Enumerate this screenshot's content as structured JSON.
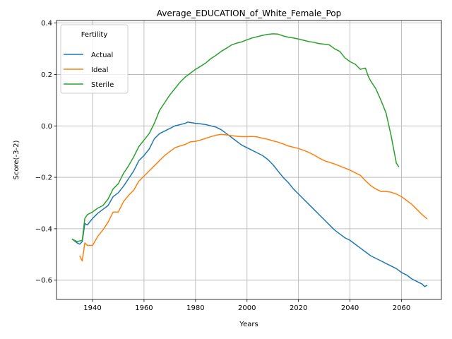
{
  "chart_data": {
    "type": "line",
    "title": "Average_EDUCATION_of_White_Female_Pop",
    "xlabel": "Years",
    "ylabel": "Score(-3-2)",
    "xlim": [
      1926,
      2075.5
    ],
    "ylim": [
      -0.675,
      0.41
    ],
    "xticks": [
      1940,
      1960,
      1980,
      2000,
      2020,
      2040,
      2060
    ],
    "xtick_labels": [
      "1940",
      "1960",
      "1980",
      "2000",
      "2020",
      "2040",
      "2060"
    ],
    "yticks": [
      -0.6,
      -0.4,
      -0.2,
      0.0,
      0.2,
      0.4
    ],
    "ytick_labels": [
      "−0.6",
      "−0.4",
      "−0.2",
      "0.0",
      "0.2",
      "0.4"
    ],
    "grid": true,
    "legend": {
      "title": "Fertility",
      "position": "top-left"
    },
    "series": [
      {
        "name": "Actual",
        "color": "#1f77b4",
        "x": [
          1932,
          1934,
          1935,
          1936,
          1937,
          1938,
          1940,
          1942,
          1944,
          1946,
          1948,
          1950,
          1952,
          1954,
          1956,
          1958,
          1960,
          1962,
          1964,
          1966,
          1968,
          1970,
          1972,
          1974,
          1976,
          1977,
          1978,
          1980,
          1982,
          1984,
          1986,
          1988,
          1990,
          1992,
          1994,
          1996,
          1998,
          2000,
          2002,
          2004,
          2006,
          2008,
          2010,
          2012,
          2014,
          2016,
          2018,
          2020,
          2022,
          2024,
          2026,
          2028,
          2030,
          2032,
          2034,
          2036,
          2038,
          2040,
          2042,
          2044,
          2046,
          2048,
          2050,
          2052,
          2054,
          2056,
          2058,
          2060,
          2062,
          2064,
          2066,
          2068,
          2069,
          2070
        ],
        "values": [
          -0.44,
          -0.455,
          -0.46,
          -0.45,
          -0.38,
          -0.385,
          -0.36,
          -0.34,
          -0.325,
          -0.31,
          -0.275,
          -0.26,
          -0.235,
          -0.205,
          -0.175,
          -0.135,
          -0.115,
          -0.09,
          -0.05,
          -0.03,
          -0.02,
          -0.01,
          0.0,
          0.005,
          0.01,
          0.015,
          0.013,
          0.01,
          0.008,
          0.005,
          0.0,
          -0.005,
          -0.015,
          -0.03,
          -0.045,
          -0.06,
          -0.075,
          -0.085,
          -0.095,
          -0.105,
          -0.115,
          -0.13,
          -0.15,
          -0.175,
          -0.2,
          -0.22,
          -0.245,
          -0.265,
          -0.285,
          -0.305,
          -0.325,
          -0.345,
          -0.365,
          -0.385,
          -0.405,
          -0.42,
          -0.435,
          -0.445,
          -0.46,
          -0.475,
          -0.49,
          -0.505,
          -0.515,
          -0.525,
          -0.535,
          -0.545,
          -0.555,
          -0.57,
          -0.58,
          -0.595,
          -0.605,
          -0.615,
          -0.625,
          -0.62
        ]
      },
      {
        "name": "Ideal",
        "color": "#ff7f0e",
        "x": [
          1935,
          1936,
          1937,
          1938,
          1940,
          1942,
          1944,
          1946,
          1948,
          1950,
          1952,
          1954,
          1956,
          1958,
          1960,
          1962,
          1964,
          1966,
          1968,
          1970,
          1972,
          1974,
          1976,
          1978,
          1980,
          1982,
          1984,
          1986,
          1988,
          1990,
          1992,
          1994,
          1996,
          1998,
          2000,
          2002,
          2004,
          2006,
          2008,
          2010,
          2012,
          2014,
          2016,
          2018,
          2020,
          2022,
          2024,
          2026,
          2028,
          2030,
          2032,
          2034,
          2036,
          2038,
          2040,
          2042,
          2044,
          2046,
          2048,
          2050,
          2052,
          2054,
          2056,
          2058,
          2060,
          2062,
          2064,
          2066,
          2068,
          2070
        ],
        "values": [
          -0.505,
          -0.525,
          -0.455,
          -0.465,
          -0.465,
          -0.43,
          -0.405,
          -0.375,
          -0.335,
          -0.335,
          -0.295,
          -0.27,
          -0.25,
          -0.215,
          -0.195,
          -0.175,
          -0.155,
          -0.135,
          -0.115,
          -0.1,
          -0.085,
          -0.078,
          -0.072,
          -0.062,
          -0.06,
          -0.055,
          -0.048,
          -0.042,
          -0.036,
          -0.033,
          -0.035,
          -0.038,
          -0.04,
          -0.042,
          -0.042,
          -0.041,
          -0.043,
          -0.048,
          -0.052,
          -0.058,
          -0.063,
          -0.07,
          -0.078,
          -0.083,
          -0.088,
          -0.095,
          -0.103,
          -0.113,
          -0.125,
          -0.135,
          -0.142,
          -0.148,
          -0.156,
          -0.164,
          -0.172,
          -0.182,
          -0.192,
          -0.213,
          -0.232,
          -0.245,
          -0.255,
          -0.255,
          -0.258,
          -0.265,
          -0.275,
          -0.29,
          -0.305,
          -0.325,
          -0.345,
          -0.362
        ]
      },
      {
        "name": "Sterile",
        "color": "#2ca02c",
        "x": [
          1932,
          1934,
          1936,
          1937,
          1938,
          1940,
          1942,
          1944,
          1946,
          1948,
          1950,
          1952,
          1954,
          1956,
          1958,
          1960,
          1962,
          1964,
          1966,
          1968,
          1970,
          1972,
          1974,
          1976,
          1978,
          1980,
          1982,
          1984,
          1986,
          1988,
          1990,
          1992,
          1994,
          1996,
          1998,
          2000,
          2002,
          2004,
          2006,
          2008,
          2010,
          2012,
          2014,
          2016,
          2018,
          2020,
          2022,
          2024,
          2026,
          2028,
          2030,
          2032,
          2034,
          2036,
          2038,
          2040,
          2042,
          2044,
          2046,
          2047,
          2048,
          2050,
          2052,
          2054,
          2056,
          2058,
          2059
        ],
        "values": [
          -0.44,
          -0.45,
          -0.445,
          -0.36,
          -0.345,
          -0.335,
          -0.32,
          -0.31,
          -0.285,
          -0.245,
          -0.225,
          -0.185,
          -0.155,
          -0.12,
          -0.08,
          -0.055,
          -0.03,
          0.01,
          0.06,
          0.09,
          0.12,
          0.145,
          0.17,
          0.19,
          0.205,
          0.22,
          0.232,
          0.245,
          0.262,
          0.275,
          0.29,
          0.302,
          0.315,
          0.322,
          0.327,
          0.335,
          0.342,
          0.347,
          0.352,
          0.356,
          0.358,
          0.357,
          0.35,
          0.345,
          0.342,
          0.338,
          0.333,
          0.328,
          0.325,
          0.32,
          0.318,
          0.315,
          0.3,
          0.29,
          0.265,
          0.25,
          0.24,
          0.22,
          0.225,
          0.195,
          0.175,
          0.145,
          0.1,
          0.05,
          -0.04,
          -0.145,
          -0.16
        ]
      }
    ]
  }
}
